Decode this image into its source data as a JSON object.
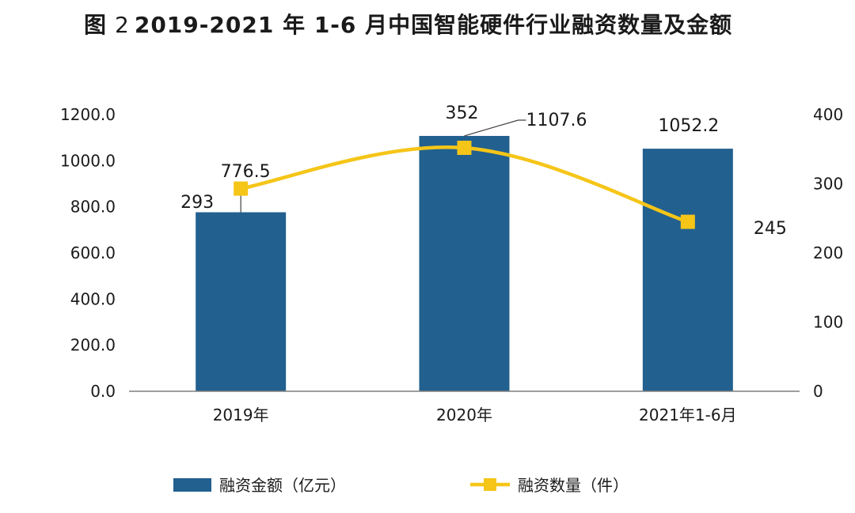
{
  "title": {
    "prefix": "图",
    "number": "2",
    "text": "2019-2021 年 1-6 月中国智能硬件行业融资数量及金额"
  },
  "chart_data": {
    "type": "bar",
    "title": "图 2 2019-2021 年 1-6 月中国智能硬件行业融资数量及金额",
    "categories": [
      "2019年",
      "2020年",
      "2021年1-6月"
    ],
    "series": [
      {
        "name": "融资金额（亿元）",
        "type": "bar",
        "axis": "left",
        "values": [
          776.5,
          1107.6,
          1052.2
        ],
        "labels": [
          "776.5",
          "1107.6",
          "1052.2"
        ],
        "color": "#22608f"
      },
      {
        "name": "融资数量（件）",
        "type": "line",
        "axis": "right",
        "values": [
          293,
          352,
          245
        ],
        "labels": [
          "293",
          "352",
          "245"
        ],
        "color": "#f5c518"
      }
    ],
    "y_left": {
      "min": 0,
      "max": 1200,
      "ticks": [
        "0.0",
        "200.0",
        "400.0",
        "600.0",
        "800.0",
        "1000.0",
        "1200.0"
      ]
    },
    "y_right": {
      "min": 0,
      "max": 400,
      "ticks": [
        "0",
        "100",
        "200",
        "300",
        "400"
      ]
    },
    "grid": false,
    "legend_position": "bottom"
  }
}
